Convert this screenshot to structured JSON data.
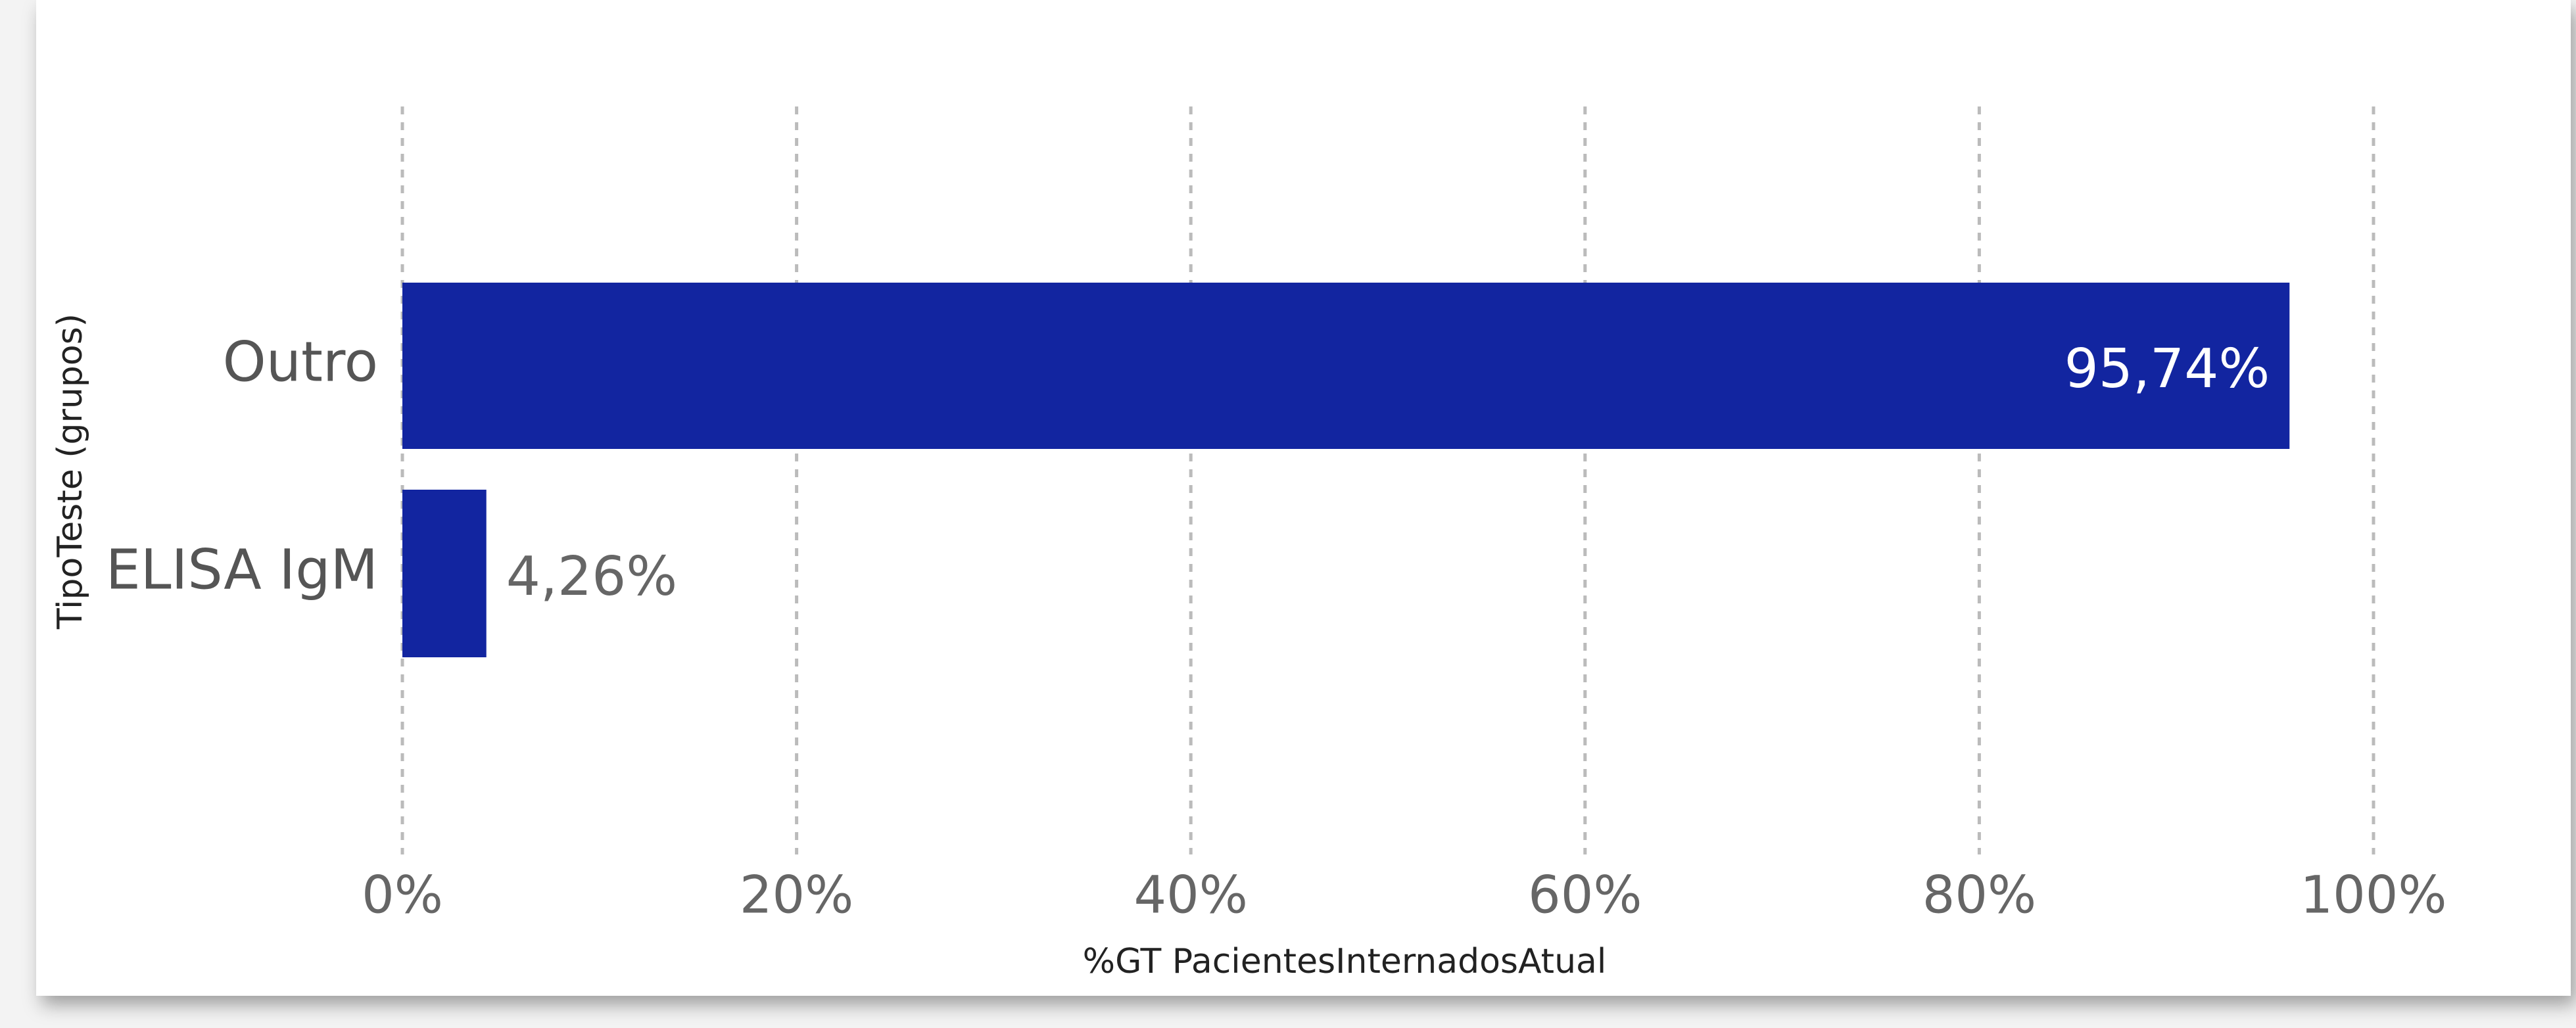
{
  "chart_data": {
    "type": "bar",
    "orientation": "horizontal",
    "categories": [
      "Outro",
      "ELISA IgM"
    ],
    "values": [
      95.74,
      4.26
    ],
    "value_labels": [
      "95,74%",
      "4,26%"
    ],
    "color": "#1225a0",
    "xlabel": "%GT PacientesInternadosAtual",
    "ylabel": "TipoTeste (grupos)",
    "xlim": [
      0,
      100
    ],
    "xticks": [
      {
        "value": 0,
        "label": "0%"
      },
      {
        "value": 20,
        "label": "20%"
      },
      {
        "value": 40,
        "label": "40%"
      },
      {
        "value": 60,
        "label": "60%"
      },
      {
        "value": 80,
        "label": "80%"
      },
      {
        "value": 100,
        "label": "100%"
      }
    ],
    "grid": true
  }
}
